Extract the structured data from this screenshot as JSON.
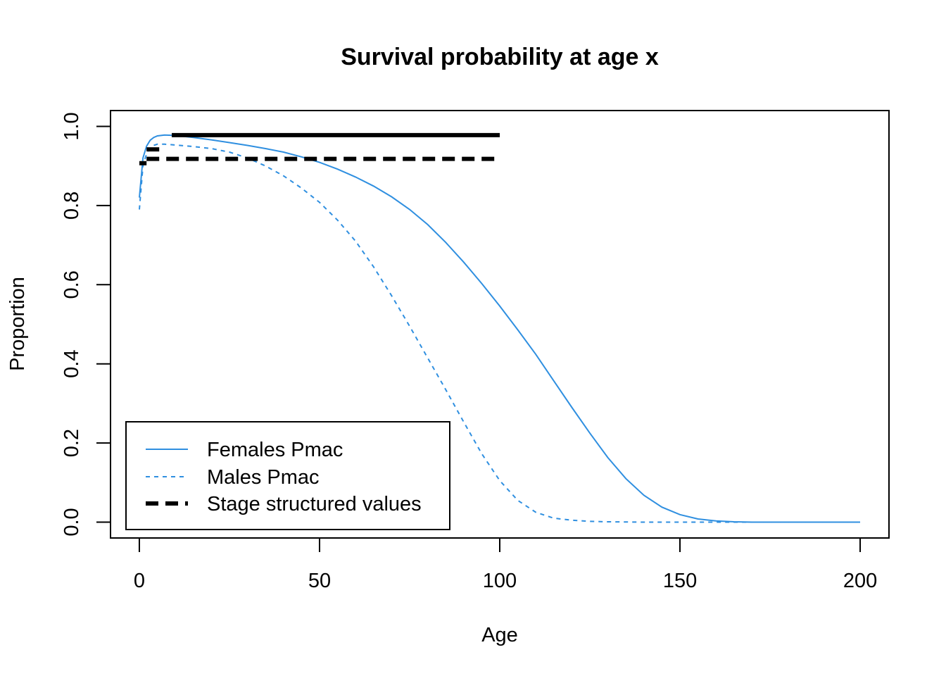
{
  "chart_data": {
    "type": "line",
    "title": "Survival probability at age x",
    "xlabel": "Age",
    "ylabel": "Proportion",
    "xlim": [
      -8,
      208
    ],
    "ylim": [
      -0.04,
      1.04
    ],
    "xticks": [
      0,
      50,
      100,
      150,
      200
    ],
    "yticks": [
      0.0,
      0.2,
      0.4,
      0.6,
      0.8,
      1.0
    ],
    "ytick_labels": [
      "0.0",
      "0.2",
      "0.4",
      "0.6",
      "0.8",
      "1.0"
    ],
    "grid": false,
    "legend_position": "bottom-left",
    "series": [
      {
        "name": "Females Pmac",
        "color": "#2f8fe0",
        "style": "solid",
        "x": [
          0,
          1,
          2,
          3,
          4,
          5,
          7,
          10,
          15,
          20,
          25,
          30,
          35,
          40,
          45,
          50,
          55,
          60,
          65,
          70,
          75,
          80,
          85,
          90,
          95,
          100,
          105,
          110,
          115,
          120,
          125,
          130,
          135,
          140,
          145,
          150,
          155,
          160,
          165,
          170,
          180,
          190,
          200
        ],
        "y": [
          0.82,
          0.92,
          0.95,
          0.965,
          0.972,
          0.976,
          0.978,
          0.977,
          0.972,
          0.966,
          0.959,
          0.952,
          0.944,
          0.935,
          0.923,
          0.909,
          0.892,
          0.872,
          0.849,
          0.822,
          0.79,
          0.752,
          0.707,
          0.657,
          0.603,
          0.546,
          0.486,
          0.424,
          0.357,
          0.29,
          0.225,
          0.163,
          0.11,
          0.068,
          0.038,
          0.019,
          0.008,
          0.003,
          0.001,
          0.0,
          0.0,
          0.0,
          0.0
        ]
      },
      {
        "name": "Males Pmac",
        "color": "#2f8fe0",
        "style": "dashed",
        "x": [
          0,
          1,
          2,
          3,
          4,
          5,
          7,
          10,
          15,
          20,
          25,
          30,
          35,
          40,
          45,
          50,
          55,
          60,
          65,
          70,
          75,
          80,
          85,
          90,
          95,
          100,
          105,
          110,
          115,
          118,
          120,
          125,
          130,
          140,
          150,
          160,
          170,
          180,
          190,
          200
        ],
        "y": [
          0.79,
          0.9,
          0.93,
          0.945,
          0.952,
          0.955,
          0.955,
          0.953,
          0.949,
          0.944,
          0.935,
          0.92,
          0.9,
          0.875,
          0.844,
          0.808,
          0.763,
          0.71,
          0.645,
          0.572,
          0.495,
          0.415,
          0.335,
          0.253,
          0.173,
          0.105,
          0.055,
          0.025,
          0.01,
          0.007,
          0.005,
          0.002,
          0.001,
          0.0,
          0.0,
          0.0,
          0.0,
          0.0,
          0.0,
          0.0
        ]
      }
    ],
    "stage_structured": {
      "name": "Stage structured values",
      "color": "#000000",
      "segments": [
        {
          "x": [
            0,
            2
          ],
          "y": 0.907,
          "style": "dashed"
        },
        {
          "x": [
            2,
            7
          ],
          "y": 0.942,
          "style": "dashed"
        },
        {
          "x": [
            2,
            100
          ],
          "y": 0.918,
          "style": "dashed"
        },
        {
          "x": [
            9,
            100
          ],
          "y": 0.978,
          "style": "solid"
        }
      ]
    }
  }
}
